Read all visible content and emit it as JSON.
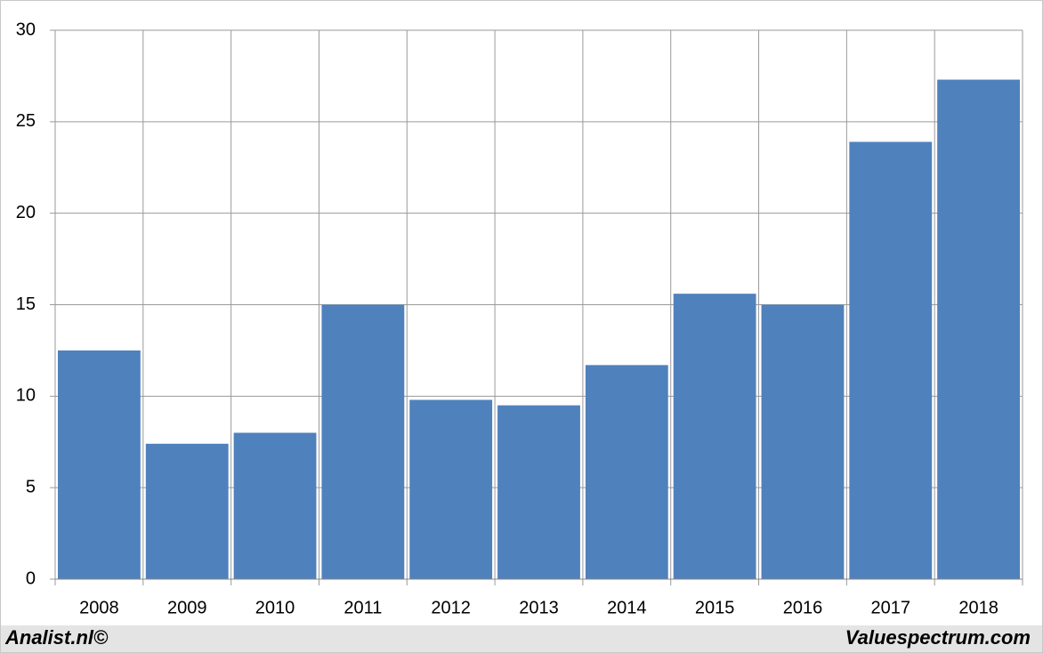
{
  "chart_data": {
    "type": "bar",
    "categories": [
      "2008",
      "2009",
      "2010",
      "2011",
      "2012",
      "2013",
      "2014",
      "2015",
      "2016",
      "2017",
      "2018"
    ],
    "values": [
      12.5,
      7.4,
      8.0,
      15.0,
      9.8,
      9.5,
      11.7,
      15.6,
      15.0,
      23.9,
      27.3
    ],
    "color": "#4f81bd",
    "ylim": [
      0,
      30
    ],
    "yticks": [
      0,
      5,
      10,
      15,
      20,
      25,
      30
    ],
    "grid": true,
    "credits": [
      "Analist.nl©",
      "Valuespectrum.com"
    ]
  }
}
